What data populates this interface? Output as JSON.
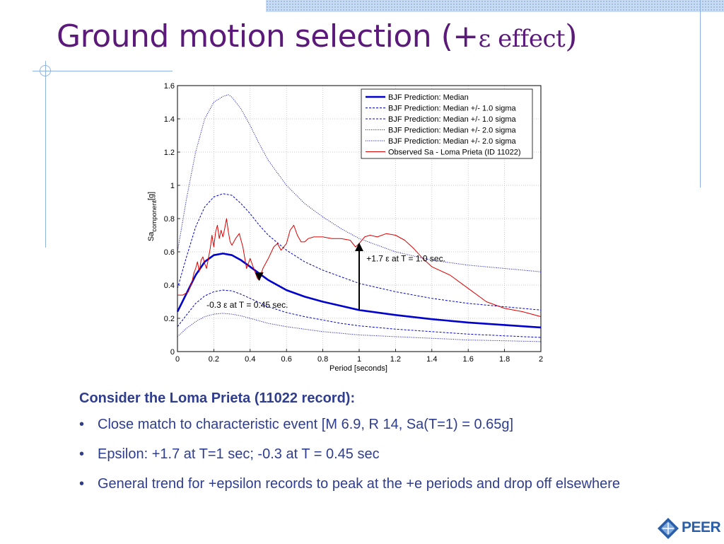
{
  "slide": {
    "title_main": "Ground motion selection (+",
    "title_symbol": "ε",
    "title_effect": " effect",
    "title_close": ")"
  },
  "body": {
    "heading": "Consider the Loma Prieta (11022 record):",
    "bullet_char": "•",
    "bullets": [
      "Close match to characteristic event [M 6.9, R 14, Sa(T=1) = 0.65g]",
      "Epsilon: +1.7 at T=1 sec; -0.3 at T = 0.45 sec",
      "General trend for +epsilon records to peak at the +e periods and drop off elsewhere"
    ]
  },
  "logo": {
    "text": "PEER"
  },
  "chart_data": {
    "type": "line",
    "xlabel": "Period [seconds]",
    "ylabel_main": "Sa",
    "ylabel_sub": "component",
    "ylabel_unit": "[g]",
    "xlim": [
      0,
      2
    ],
    "ylim": [
      0,
      1.6
    ],
    "xticks": [
      "0",
      "0.2",
      "0.4",
      "0.6",
      "0.8",
      "1",
      "1.2",
      "1.4",
      "1.6",
      "1.8",
      "2"
    ],
    "yticks": [
      "0",
      "0.2",
      "0.4",
      "0.6",
      "0.8",
      "1",
      "1.2",
      "1.4",
      "1.6"
    ],
    "grid": true,
    "legend_position": "top-right",
    "colors": {
      "prediction": "#0000cc",
      "observed": "#dd0000",
      "arrow": "#000000"
    },
    "series": [
      {
        "name": "BJF Prediction: Median",
        "style": "solid-thick",
        "color": "#0000cc",
        "x": [
          0,
          0.05,
          0.1,
          0.15,
          0.2,
          0.25,
          0.3,
          0.35,
          0.4,
          0.45,
          0.5,
          0.6,
          0.7,
          0.8,
          0.9,
          1.0,
          1.2,
          1.4,
          1.6,
          1.8,
          2.0
        ],
        "y": [
          0.24,
          0.35,
          0.46,
          0.54,
          0.58,
          0.59,
          0.58,
          0.55,
          0.51,
          0.47,
          0.43,
          0.37,
          0.33,
          0.3,
          0.275,
          0.25,
          0.22,
          0.195,
          0.175,
          0.16,
          0.145
        ]
      },
      {
        "name": "BJF Prediction: Median +/- 1.0 sigma",
        "style": "dashed",
        "color": "#0000cc",
        "x": [
          0,
          0.05,
          0.1,
          0.15,
          0.2,
          0.25,
          0.3,
          0.35,
          0.4,
          0.45,
          0.5,
          0.6,
          0.7,
          0.8,
          0.9,
          1.0,
          1.2,
          1.4,
          1.6,
          1.8,
          2.0
        ],
        "y": [
          0.38,
          0.57,
          0.75,
          0.87,
          0.93,
          0.95,
          0.94,
          0.89,
          0.83,
          0.76,
          0.7,
          0.61,
          0.54,
          0.49,
          0.45,
          0.41,
          0.36,
          0.32,
          0.29,
          0.27,
          0.25
        ]
      },
      {
        "name": "BJF Prediction: Median +/- 1.0 sigma",
        "style": "dashed",
        "color": "#0000cc",
        "x": [
          0,
          0.05,
          0.1,
          0.15,
          0.2,
          0.25,
          0.3,
          0.35,
          0.4,
          0.45,
          0.5,
          0.6,
          0.7,
          0.8,
          0.9,
          1.0,
          1.2,
          1.4,
          1.6,
          1.8,
          2.0
        ],
        "y": [
          0.15,
          0.22,
          0.29,
          0.335,
          0.36,
          0.37,
          0.365,
          0.345,
          0.32,
          0.295,
          0.27,
          0.235,
          0.21,
          0.19,
          0.17,
          0.155,
          0.135,
          0.12,
          0.105,
          0.095,
          0.085
        ]
      },
      {
        "name": "BJF Prediction: Median +/- 2.0 sigma",
        "style": "dotted",
        "color": "#0000cc",
        "x": [
          0,
          0.05,
          0.1,
          0.15,
          0.2,
          0.25,
          0.28,
          0.3,
          0.35,
          0.4,
          0.45,
          0.5,
          0.6,
          0.7,
          0.8,
          0.9,
          1.0,
          1.2,
          1.4,
          1.6,
          1.8,
          2.0
        ],
        "y": [
          0.6,
          0.92,
          1.2,
          1.4,
          1.5,
          1.535,
          1.545,
          1.53,
          1.46,
          1.36,
          1.25,
          1.15,
          1.0,
          0.89,
          0.81,
          0.74,
          0.68,
          0.6,
          0.55,
          0.52,
          0.5,
          0.48
        ]
      },
      {
        "name": "BJF Prediction: Median +/- 2.0 sigma",
        "style": "dotted",
        "color": "#0000cc",
        "x": [
          0,
          0.05,
          0.1,
          0.15,
          0.2,
          0.25,
          0.3,
          0.35,
          0.4,
          0.45,
          0.5,
          0.6,
          0.7,
          0.8,
          0.9,
          1.0,
          1.2,
          1.4,
          1.6,
          1.8,
          2.0
        ],
        "y": [
          0.09,
          0.14,
          0.18,
          0.21,
          0.225,
          0.23,
          0.225,
          0.215,
          0.2,
          0.185,
          0.17,
          0.15,
          0.135,
          0.12,
          0.11,
          0.1,
          0.09,
          0.08,
          0.07,
          0.065,
          0.06
        ]
      },
      {
        "name": "Observed Sa - Loma Prieta (ID 11022)",
        "style": "solid-thin",
        "color": "#dd0000",
        "x": [
          0,
          0.03,
          0.06,
          0.08,
          0.09,
          0.1,
          0.11,
          0.12,
          0.13,
          0.14,
          0.15,
          0.16,
          0.17,
          0.18,
          0.19,
          0.2,
          0.21,
          0.22,
          0.23,
          0.24,
          0.25,
          0.26,
          0.27,
          0.28,
          0.29,
          0.3,
          0.32,
          0.34,
          0.36,
          0.38,
          0.4,
          0.42,
          0.44,
          0.45,
          0.47,
          0.5,
          0.53,
          0.55,
          0.57,
          0.6,
          0.62,
          0.64,
          0.66,
          0.68,
          0.7,
          0.72,
          0.75,
          0.8,
          0.85,
          0.9,
          0.95,
          0.98,
          1.0,
          1.03,
          1.06,
          1.1,
          1.15,
          1.2,
          1.25,
          1.3,
          1.35,
          1.4,
          1.5,
          1.6,
          1.7,
          1.8,
          1.9,
          2.0
        ],
        "y": [
          0.34,
          0.34,
          0.36,
          0.42,
          0.47,
          0.5,
          0.54,
          0.48,
          0.55,
          0.57,
          0.53,
          0.5,
          0.56,
          0.62,
          0.7,
          0.63,
          0.72,
          0.76,
          0.68,
          0.73,
          0.69,
          0.74,
          0.8,
          0.72,
          0.66,
          0.64,
          0.68,
          0.71,
          0.63,
          0.5,
          0.56,
          0.5,
          0.44,
          0.43,
          0.5,
          0.56,
          0.63,
          0.65,
          0.61,
          0.65,
          0.73,
          0.76,
          0.7,
          0.66,
          0.66,
          0.68,
          0.69,
          0.69,
          0.68,
          0.68,
          0.67,
          0.63,
          0.65,
          0.69,
          0.7,
          0.69,
          0.71,
          0.7,
          0.67,
          0.62,
          0.56,
          0.51,
          0.46,
          0.38,
          0.3,
          0.26,
          0.24,
          0.21
        ]
      }
    ],
    "annotations": [
      {
        "text": "+1.7 ε at T = 1.0 sec.",
        "arrow_x": 1.0,
        "arrow_from": 0.25,
        "arrow_to": 0.65,
        "label_x": 1.04,
        "label_y": 0.56
      },
      {
        "text": "-0.3 ε at T = 0.45 sec.",
        "arrow_x": 0.45,
        "arrow_from": 0.47,
        "arrow_to": 0.43,
        "label_x": 0.16,
        "label_y": 0.28
      }
    ]
  }
}
